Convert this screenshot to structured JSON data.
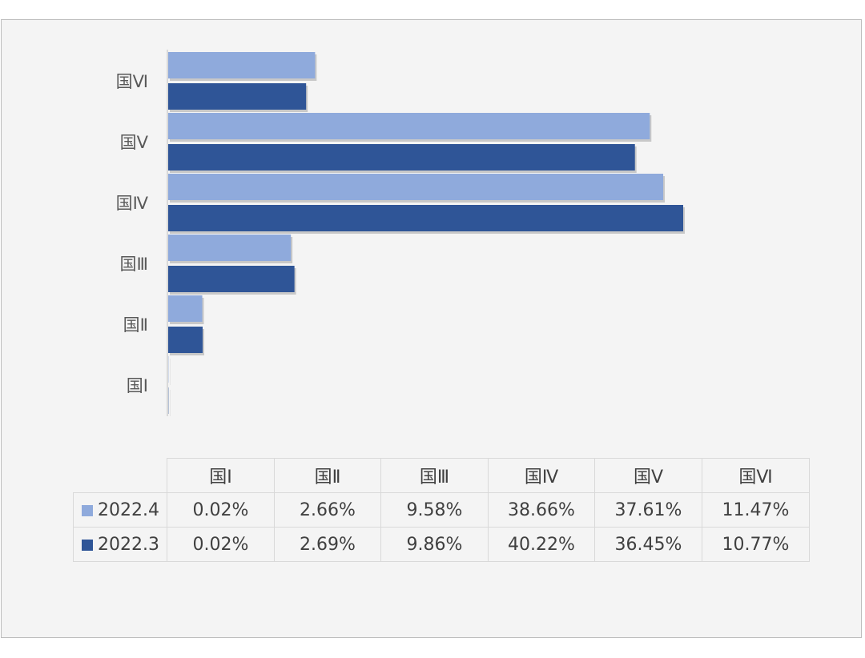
{
  "chart_data": {
    "type": "bar",
    "orientation": "horizontal",
    "categories": [
      "国Ⅰ",
      "国Ⅱ",
      "国Ⅲ",
      "国Ⅳ",
      "国Ⅴ",
      "国Ⅵ"
    ],
    "series": [
      {
        "name": "2022.4",
        "color": "#8faadc",
        "values": [
          0.02,
          2.66,
          9.58,
          38.66,
          37.61,
          11.47
        ],
        "labels": [
          "0.02%",
          "2.66%",
          "9.58%",
          "38.66%",
          "37.61%",
          "11.47%"
        ]
      },
      {
        "name": "2022.3",
        "color": "#2f5597",
        "values": [
          0.02,
          2.69,
          9.86,
          40.22,
          36.45,
          10.77
        ],
        "labels": [
          "0.02%",
          "2.69%",
          "9.86%",
          "40.22%",
          "36.45%",
          "10.77%"
        ]
      }
    ],
    "xlim": [
      0,
      45
    ],
    "unit": "%",
    "title": "",
    "xlabel": "",
    "ylabel": "",
    "legend": "data-table"
  }
}
